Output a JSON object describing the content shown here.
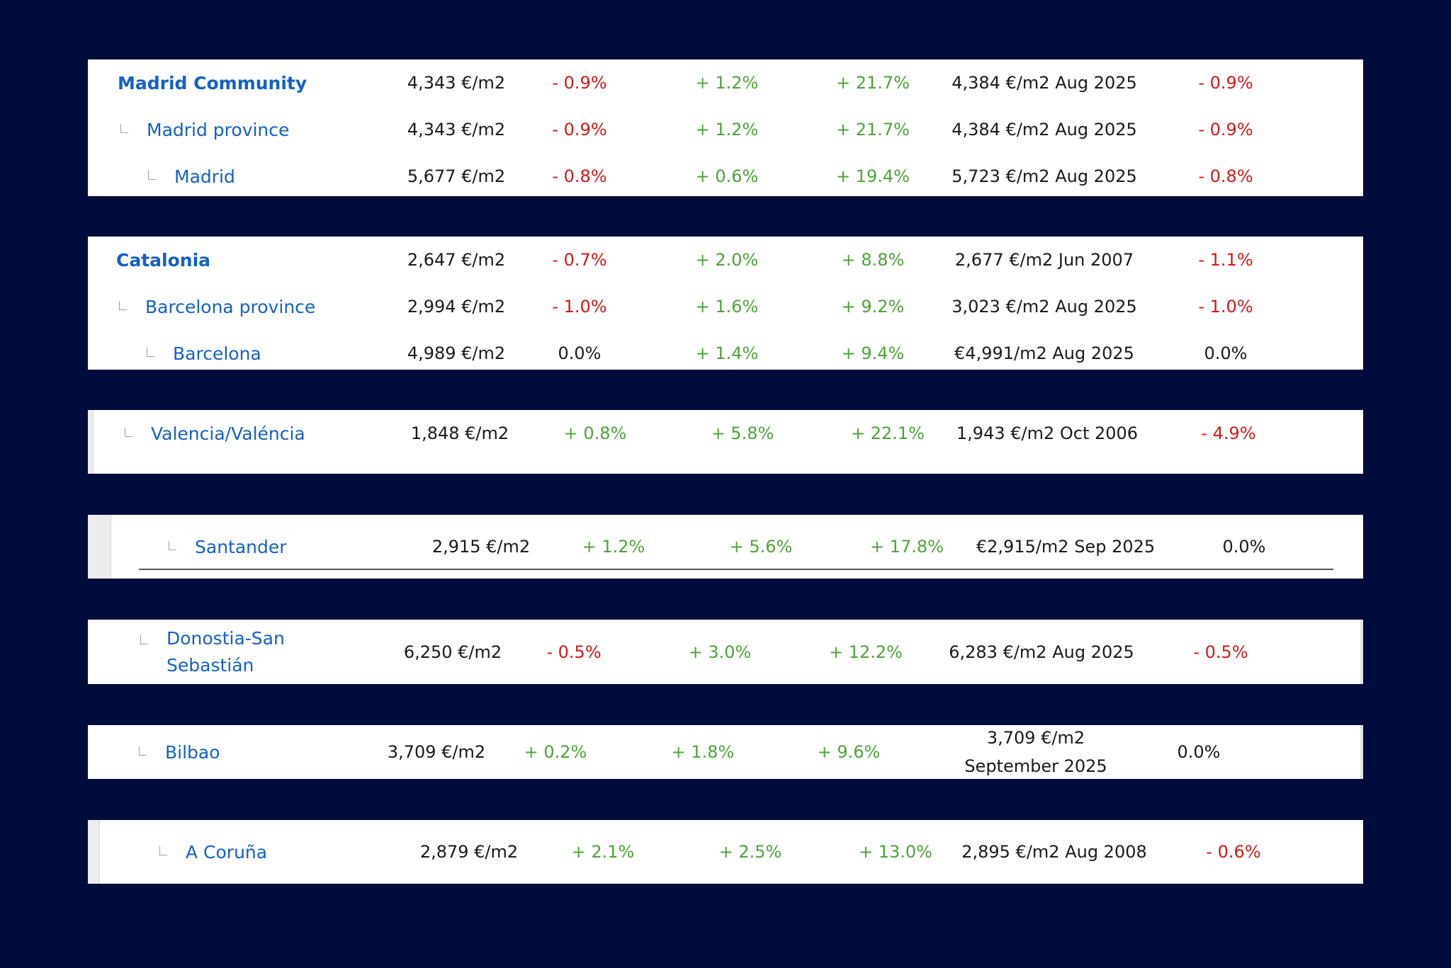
{
  "colors": {
    "background": "#000c3b",
    "link": "#1560c7",
    "positive": "#4ea43a",
    "negative": "#d51818",
    "neutral": "#1a1a1a"
  },
  "groups": [
    {
      "rows": [
        {
          "name": "Madrid Community",
          "price": "4,343 €/m2",
          "monthly": "- 0.9%",
          "quarterly": "+ 1.2%",
          "annual": "+ 21.7%",
          "max": "4,384 €/m2 Aug 2025",
          "vs_max": "- 0.9%"
        },
        {
          "name": "Madrid province",
          "price": "4,343 €/m2",
          "monthly": "- 0.9%",
          "quarterly": "+ 1.2%",
          "annual": "+ 21.7%",
          "max": "4,384 €/m2 Aug 2025",
          "vs_max": "- 0.9%"
        },
        {
          "name": "Madrid",
          "price": "5,677 €/m2",
          "monthly": "- 0.8%",
          "quarterly": "+ 0.6%",
          "annual": "+ 19.4%",
          "max": "5,723 €/m2 Aug 2025",
          "vs_max": "- 0.8%"
        }
      ]
    },
    {
      "rows": [
        {
          "name": "Catalonia",
          "price": "2,647 €/m2",
          "monthly": "- 0.7%",
          "quarterly": "+ 2.0%",
          "annual": "+ 8.8%",
          "max": "2,677 €/m2 Jun 2007",
          "vs_max": "- 1.1%"
        },
        {
          "name": "Barcelona province",
          "price": "2,994 €/m2",
          "monthly": "- 1.0%",
          "quarterly": "+ 1.6%",
          "annual": "+ 9.2%",
          "max": "3,023 €/m2 Aug 2025",
          "vs_max": "- 1.0%"
        },
        {
          "name": "Barcelona",
          "price": "4,989 €/m2",
          "monthly": "0.0%",
          "quarterly": "+ 1.4%",
          "annual": "+ 9.4%",
          "max": "€4,991/m2 Aug 2025",
          "vs_max": "0.0%"
        }
      ]
    },
    {
      "rows": [
        {
          "name": "Valencia/Valéncia",
          "price": "1,848 €/m2",
          "monthly": "+ 0.8%",
          "quarterly": "+ 5.8%",
          "annual": "+ 22.1%",
          "max": "1,943 €/m2 Oct 2006",
          "vs_max": "- 4.9%"
        }
      ]
    },
    {
      "rows": [
        {
          "name": "Santander",
          "price": "2,915 €/m2",
          "monthly": "+ 1.2%",
          "quarterly": "+ 5.6%",
          "annual": "+ 17.8%",
          "max": "€2,915/m2 Sep 2025",
          "vs_max": "0.0%"
        }
      ]
    },
    {
      "rows": [
        {
          "name": "Donostia-San Sebastián",
          "price": "6,250 €/m2",
          "monthly": "- 0.5%",
          "quarterly": "+ 3.0%",
          "annual": "+ 12.2%",
          "max": "6,283 €/m2 Aug 2025",
          "vs_max": "- 0.5%"
        }
      ]
    },
    {
      "rows": [
        {
          "name": "Bilbao",
          "price": "3,709 €/m2",
          "monthly": "+ 0.2%",
          "quarterly": "+ 1.8%",
          "annual": "+ 9.6%",
          "max": "3,709 €/m2 September 2025",
          "vs_max": "0.0%"
        }
      ]
    },
    {
      "rows": [
        {
          "name": "A Coruña",
          "price": "2,879 €/m2",
          "monthly": "+ 2.1%",
          "quarterly": "+ 2.5%",
          "annual": "+ 13.0%",
          "max": "2,895 €/m2 Aug 2008",
          "vs_max": "- 0.6%"
        }
      ]
    }
  ]
}
